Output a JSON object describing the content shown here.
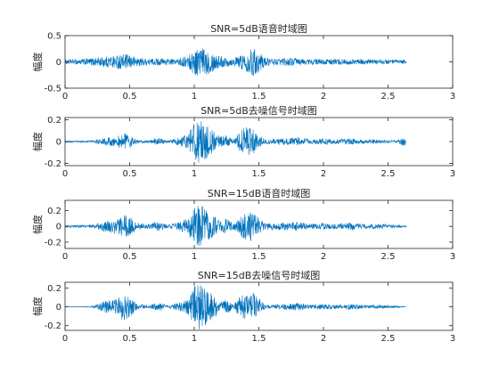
{
  "figure": {
    "background": "#ffffff",
    "axes_color": "#262626",
    "line_color": "#0072BD"
  },
  "chart_data": [
    {
      "type": "line",
      "title": "SNR=5dB语音时域图",
      "xlabel": "",
      "ylabel": "幅度",
      "xlim": [
        0,
        3
      ],
      "ylim": [
        -0.5,
        0.5
      ],
      "xticks": [
        0,
        0.5,
        1,
        1.5,
        2,
        2.5,
        3
      ],
      "yticks": [
        -0.5,
        0,
        0.5
      ],
      "xtick_labels": [
        "0",
        "0.5",
        "1",
        "1.5",
        "2",
        "2.5",
        "3"
      ],
      "ytick_labels": [
        "-0.5",
        "0",
        "0.5"
      ],
      "signal_end": 2.64,
      "noise_floor": 0.04,
      "grid": false,
      "envelope": [
        {
          "x": 0.0,
          "y": 0.04
        },
        {
          "x": 0.1,
          "y": 0.05
        },
        {
          "x": 0.2,
          "y": 0.07
        },
        {
          "x": 0.3,
          "y": 0.1
        },
        {
          "x": 0.4,
          "y": 0.13
        },
        {
          "x": 0.45,
          "y": 0.15
        },
        {
          "x": 0.5,
          "y": 0.13
        },
        {
          "x": 0.58,
          "y": 0.08
        },
        {
          "x": 0.65,
          "y": 0.06
        },
        {
          "x": 0.75,
          "y": 0.07
        },
        {
          "x": 0.85,
          "y": 0.05
        },
        {
          "x": 0.95,
          "y": 0.12
        },
        {
          "x": 1.0,
          "y": 0.25
        },
        {
          "x": 1.05,
          "y": 0.28
        },
        {
          "x": 1.1,
          "y": 0.24
        },
        {
          "x": 1.2,
          "y": 0.12
        },
        {
          "x": 1.3,
          "y": 0.07
        },
        {
          "x": 1.4,
          "y": 0.18
        },
        {
          "x": 1.45,
          "y": 0.27
        },
        {
          "x": 1.5,
          "y": 0.2
        },
        {
          "x": 1.55,
          "y": 0.08
        },
        {
          "x": 1.65,
          "y": 0.06
        },
        {
          "x": 1.75,
          "y": 0.08
        },
        {
          "x": 1.85,
          "y": 0.06
        },
        {
          "x": 2.0,
          "y": 0.05
        },
        {
          "x": 2.1,
          "y": 0.06
        },
        {
          "x": 2.2,
          "y": 0.05
        },
        {
          "x": 2.35,
          "y": 0.05
        },
        {
          "x": 2.5,
          "y": 0.04
        },
        {
          "x": 2.64,
          "y": 0.04
        }
      ]
    },
    {
      "type": "line",
      "title": "SNR=5dB去噪信号时域图",
      "xlabel": "",
      "ylabel": "幅度",
      "xlim": [
        0,
        3
      ],
      "ylim": [
        -0.22,
        0.22
      ],
      "xticks": [
        0,
        0.5,
        1,
        1.5,
        2,
        2.5,
        3
      ],
      "yticks": [
        -0.2,
        0,
        0.2
      ],
      "xtick_labels": [
        "0",
        "0.5",
        "1",
        "1.5",
        "2",
        "2.5",
        "3"
      ],
      "ytick_labels": [
        "-0.2",
        "0",
        "0.2"
      ],
      "signal_end": 2.64,
      "noise_floor": 0.006,
      "grid": false,
      "envelope": [
        {
          "x": 0.0,
          "y": 0.006
        },
        {
          "x": 0.2,
          "y": 0.01
        },
        {
          "x": 0.25,
          "y": 0.02
        },
        {
          "x": 0.3,
          "y": 0.03
        },
        {
          "x": 0.4,
          "y": 0.05
        },
        {
          "x": 0.45,
          "y": 0.08
        },
        {
          "x": 0.5,
          "y": 0.06
        },
        {
          "x": 0.55,
          "y": 0.02
        },
        {
          "x": 0.65,
          "y": 0.01
        },
        {
          "x": 0.7,
          "y": 0.03
        },
        {
          "x": 0.75,
          "y": 0.03
        },
        {
          "x": 0.8,
          "y": 0.01
        },
        {
          "x": 0.95,
          "y": 0.06
        },
        {
          "x": 1.0,
          "y": 0.18
        },
        {
          "x": 1.05,
          "y": 0.2
        },
        {
          "x": 1.1,
          "y": 0.15
        },
        {
          "x": 1.2,
          "y": 0.05
        },
        {
          "x": 1.25,
          "y": 0.06
        },
        {
          "x": 1.3,
          "y": 0.02
        },
        {
          "x": 1.4,
          "y": 0.15
        },
        {
          "x": 1.45,
          "y": 0.12
        },
        {
          "x": 1.5,
          "y": 0.07
        },
        {
          "x": 1.55,
          "y": 0.02
        },
        {
          "x": 1.7,
          "y": 0.03
        },
        {
          "x": 1.8,
          "y": 0.04
        },
        {
          "x": 1.9,
          "y": 0.02
        },
        {
          "x": 2.0,
          "y": 0.03
        },
        {
          "x": 2.1,
          "y": 0.02
        },
        {
          "x": 2.2,
          "y": 0.03
        },
        {
          "x": 2.3,
          "y": 0.02
        },
        {
          "x": 2.45,
          "y": 0.02
        },
        {
          "x": 2.55,
          "y": 0.01
        },
        {
          "x": 2.63,
          "y": 0.04
        },
        {
          "x": 2.64,
          "y": 0.01
        }
      ]
    },
    {
      "type": "line",
      "title": "SNR=15dB语音时域图",
      "xlabel": "",
      "ylabel": "幅度",
      "xlim": [
        0,
        3
      ],
      "ylim": [
        -0.28,
        0.33
      ],
      "xticks": [
        0,
        0.5,
        1,
        1.5,
        2,
        2.5,
        3
      ],
      "yticks": [
        -0.2,
        0,
        0.2
      ],
      "xtick_labels": [
        "0",
        "0.5",
        "1",
        "1.5",
        "2",
        "2.5",
        "3"
      ],
      "ytick_labels": [
        "-0.2",
        "0",
        "0.2"
      ],
      "signal_end": 2.64,
      "noise_floor": 0.012,
      "grid": false,
      "envelope": [
        {
          "x": 0.0,
          "y": 0.012
        },
        {
          "x": 0.2,
          "y": 0.02
        },
        {
          "x": 0.25,
          "y": 0.04
        },
        {
          "x": 0.3,
          "y": 0.07
        },
        {
          "x": 0.4,
          "y": 0.1
        },
        {
          "x": 0.45,
          "y": 0.16
        },
        {
          "x": 0.5,
          "y": 0.12
        },
        {
          "x": 0.55,
          "y": 0.05
        },
        {
          "x": 0.65,
          "y": 0.03
        },
        {
          "x": 0.7,
          "y": 0.06
        },
        {
          "x": 0.75,
          "y": 0.05
        },
        {
          "x": 0.8,
          "y": 0.02
        },
        {
          "x": 0.95,
          "y": 0.1
        },
        {
          "x": 1.0,
          "y": 0.24
        },
        {
          "x": 1.05,
          "y": 0.28
        },
        {
          "x": 1.1,
          "y": 0.2
        },
        {
          "x": 1.2,
          "y": 0.08
        },
        {
          "x": 1.25,
          "y": 0.1
        },
        {
          "x": 1.3,
          "y": 0.04
        },
        {
          "x": 1.4,
          "y": 0.2
        },
        {
          "x": 1.45,
          "y": 0.18
        },
        {
          "x": 1.5,
          "y": 0.1
        },
        {
          "x": 1.55,
          "y": 0.04
        },
        {
          "x": 1.7,
          "y": 0.05
        },
        {
          "x": 1.8,
          "y": 0.06
        },
        {
          "x": 1.9,
          "y": 0.03
        },
        {
          "x": 2.0,
          "y": 0.05
        },
        {
          "x": 2.1,
          "y": 0.03
        },
        {
          "x": 2.2,
          "y": 0.05
        },
        {
          "x": 2.3,
          "y": 0.03
        },
        {
          "x": 2.45,
          "y": 0.03
        },
        {
          "x": 2.55,
          "y": 0.02
        },
        {
          "x": 2.64,
          "y": 0.012
        }
      ]
    },
    {
      "type": "line",
      "title": "SNR=15dB去噪信号时域图",
      "xlabel": "",
      "ylabel": "幅度",
      "xlim": [
        0,
        3
      ],
      "ylim": [
        -0.25,
        0.26
      ],
      "xticks": [
        0,
        0.5,
        1,
        1.5,
        2,
        2.5,
        3
      ],
      "yticks": [
        -0.2,
        0,
        0.2
      ],
      "xtick_labels": [
        "0",
        "0.5",
        "1",
        "1.5",
        "2",
        "2.5",
        "3"
      ],
      "ytick_labels": [
        "-0.2",
        "0",
        "0.2"
      ],
      "signal_end": 2.64,
      "noise_floor": 0.003,
      "grid": false,
      "envelope": [
        {
          "x": 0.0,
          "y": 0.003
        },
        {
          "x": 0.2,
          "y": 0.005
        },
        {
          "x": 0.25,
          "y": 0.03
        },
        {
          "x": 0.3,
          "y": 0.06
        },
        {
          "x": 0.4,
          "y": 0.09
        },
        {
          "x": 0.45,
          "y": 0.15
        },
        {
          "x": 0.5,
          "y": 0.12
        },
        {
          "x": 0.55,
          "y": 0.04
        },
        {
          "x": 0.65,
          "y": 0.01
        },
        {
          "x": 0.7,
          "y": 0.04
        },
        {
          "x": 0.75,
          "y": 0.04
        },
        {
          "x": 0.8,
          "y": 0.01
        },
        {
          "x": 0.95,
          "y": 0.08
        },
        {
          "x": 1.0,
          "y": 0.22
        },
        {
          "x": 1.05,
          "y": 0.25
        },
        {
          "x": 1.1,
          "y": 0.18
        },
        {
          "x": 1.2,
          "y": 0.06
        },
        {
          "x": 1.25,
          "y": 0.08
        },
        {
          "x": 1.3,
          "y": 0.02
        },
        {
          "x": 1.4,
          "y": 0.18
        },
        {
          "x": 1.45,
          "y": 0.16
        },
        {
          "x": 1.5,
          "y": 0.09
        },
        {
          "x": 1.55,
          "y": 0.02
        },
        {
          "x": 1.7,
          "y": 0.03
        },
        {
          "x": 1.8,
          "y": 0.04
        },
        {
          "x": 1.9,
          "y": 0.02
        },
        {
          "x": 2.0,
          "y": 0.03
        },
        {
          "x": 2.1,
          "y": 0.02
        },
        {
          "x": 2.2,
          "y": 0.03
        },
        {
          "x": 2.3,
          "y": 0.02
        },
        {
          "x": 2.45,
          "y": 0.02
        },
        {
          "x": 2.55,
          "y": 0.01
        },
        {
          "x": 2.64,
          "y": 0.003
        }
      ]
    }
  ]
}
